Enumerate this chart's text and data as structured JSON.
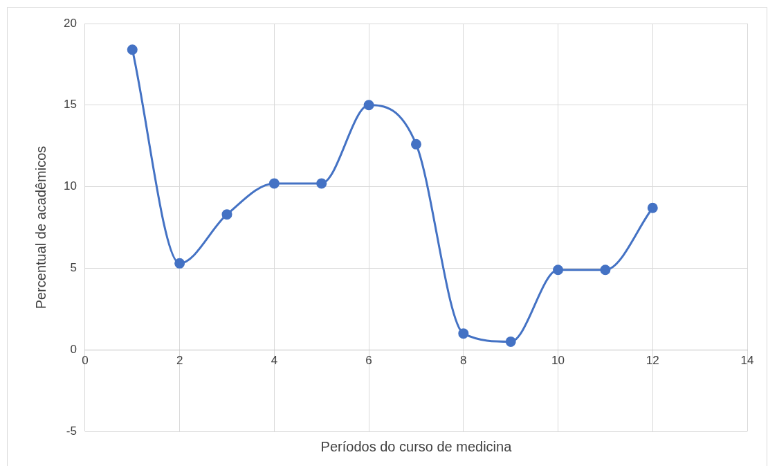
{
  "chart_data": {
    "type": "line",
    "xlabel": "Períodos do curso de medicina",
    "ylabel": "Percentual de acadêmicos",
    "x": [
      1,
      2,
      3,
      4,
      5,
      6,
      7,
      8,
      9,
      10,
      11,
      12
    ],
    "series": [
      {
        "color": "#4472c4",
        "values": [
          18.4,
          5.3,
          8.3,
          10.2,
          10.2,
          15.0,
          12.6,
          1.0,
          0.5,
          4.9,
          4.9,
          8.7
        ]
      }
    ],
    "xlim": [
      0,
      14
    ],
    "xticks": [
      0,
      2,
      4,
      6,
      8,
      10,
      12,
      14
    ],
    "ylim": [
      -5,
      20
    ],
    "yticks": [
      -5,
      0,
      5,
      10,
      15,
      20
    ],
    "grid": true,
    "legend": false,
    "marker": "circle",
    "line_style": "solid"
  }
}
